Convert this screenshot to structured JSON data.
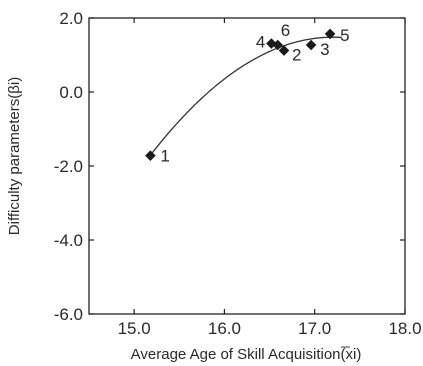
{
  "chart_data": {
    "type": "scatter",
    "xlabel": "Average Age of Skill Acquisition(̅xi)",
    "ylabel": "Difficulty parameters(βi)",
    "xlim": [
      14.5,
      18.0
    ],
    "ylim": [
      -6.0,
      2.0
    ],
    "x_ticks": [
      "15.0",
      "16.0",
      "17.0",
      "18.0"
    ],
    "x_tick_values": [
      15.0,
      16.0,
      17.0,
      18.0
    ],
    "y_ticks": [
      "2.0",
      "0.0",
      "-2.0",
      "-4.0",
      "-6.0"
    ],
    "y_tick_values": [
      2.0,
      0.0,
      -2.0,
      -4.0,
      -6.0
    ],
    "grid": false,
    "points": [
      {
        "label": "1",
        "x": 15.18,
        "y": -1.72
      },
      {
        "label": "2",
        "x": 16.66,
        "y": 1.12
      },
      {
        "label": "3",
        "x": 16.96,
        "y": 1.27
      },
      {
        "label": "4",
        "x": 16.52,
        "y": 1.31
      },
      {
        "label": "5",
        "x": 17.17,
        "y": 1.57
      },
      {
        "label": "6",
        "x": 16.59,
        "y": 1.27
      }
    ],
    "fit_curve": {
      "type": "quadratic",
      "x_range": [
        15.18,
        17.3
      ],
      "x": [
        15.18,
        15.6,
        16.0,
        16.4,
        16.8,
        17.1,
        17.3
      ],
      "y": [
        -1.72,
        -0.52,
        0.38,
        0.98,
        1.32,
        1.46,
        1.5
      ]
    },
    "colors": {
      "axis": "#222222",
      "marker": "#1a1a1a",
      "curve": "#333333"
    }
  }
}
